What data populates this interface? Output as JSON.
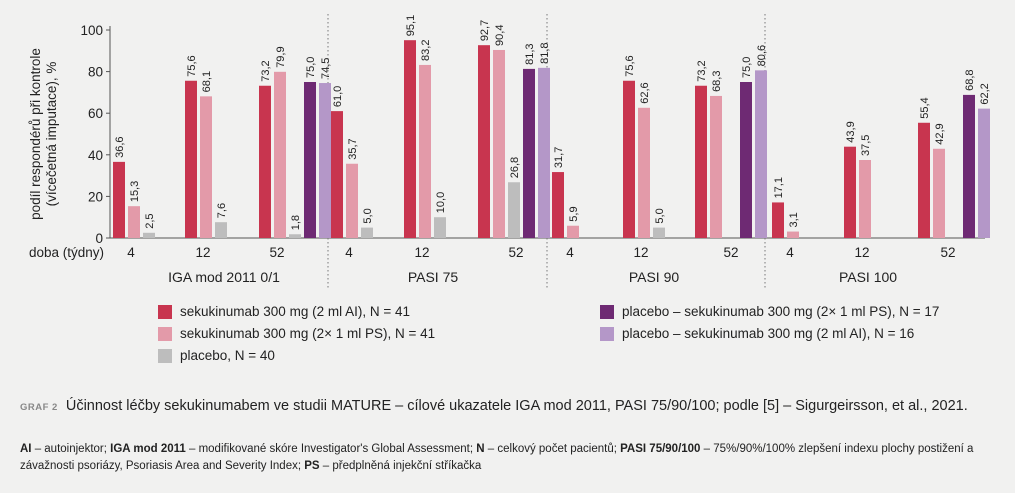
{
  "colors": {
    "sekukinumab_ai": "#c8354f",
    "sekukinumab_ps": "#e39aa9",
    "placebo": "#bdbdbd",
    "placebo_ps": "#6e2a73",
    "placebo_ai": "#b497c8"
  },
  "chart_data": {
    "type": "bar",
    "ylabel": "podíl respondérů při kontrole (vícečetná imputace), %",
    "xlabel": "doba (týdny)",
    "ylim": [
      0,
      100
    ],
    "yticks": [
      0,
      20,
      40,
      60,
      80,
      100
    ],
    "grid": false,
    "legend_position": "bottom",
    "series": [
      {
        "name": "sekukinumab 300 mg (2 ml AI), N = 41",
        "color_key": "sekukinumab_ai"
      },
      {
        "name": "sekukinumab 300 mg (2× 1 ml PS), N = 41",
        "color_key": "sekukinumab_ps"
      },
      {
        "name": "placebo, N = 40",
        "color_key": "placebo"
      },
      {
        "name": "placebo – sekukinumab 300 mg (2× 1 ml PS), N = 17",
        "color_key": "placebo_ps"
      },
      {
        "name": "placebo – sekukinumab 300 mg (2 ml AI), N = 16",
        "color_key": "placebo_ai"
      }
    ],
    "panels": [
      {
        "name": "IGA mod 2011 0/1",
        "timepoints": [
          {
            "week": "4",
            "values": [
              36.6,
              15.3,
              2.5,
              null,
              null
            ],
            "labels": [
              "36,6",
              "15,3",
              "2,5",
              "",
              ""
            ]
          },
          {
            "week": "12",
            "values": [
              75.6,
              68.1,
              7.6,
              null,
              null
            ],
            "labels": [
              "75,6",
              "68,1",
              "7,6",
              "",
              ""
            ]
          },
          {
            "week": "52",
            "values": [
              73.2,
              79.9,
              1.8,
              75.0,
              74.5
            ],
            "labels": [
              "73,2",
              "79,9",
              "1,8",
              "75,0",
              "74,5"
            ]
          }
        ]
      },
      {
        "name": "PASI 75",
        "timepoints": [
          {
            "week": "4",
            "values": [
              61.0,
              35.7,
              5.0,
              null,
              null
            ],
            "labels": [
              "61,0",
              "35,7",
              "5,0",
              "",
              ""
            ]
          },
          {
            "week": "12",
            "values": [
              95.1,
              83.2,
              10.0,
              null,
              null
            ],
            "labels": [
              "95,1",
              "83,2",
              "10,0",
              "",
              ""
            ]
          },
          {
            "week": "52",
            "values": [
              92.7,
              90.4,
              26.8,
              81.3,
              81.8
            ],
            "labels": [
              "92,7",
              "90,4",
              "26,8",
              "81,3",
              "81,8"
            ]
          }
        ]
      },
      {
        "name": "PASI 90",
        "timepoints": [
          {
            "week": "4",
            "values": [
              31.7,
              5.9,
              null,
              null,
              null
            ],
            "labels": [
              "31,7",
              "5,9",
              "",
              "",
              ""
            ]
          },
          {
            "week": "12",
            "values": [
              75.6,
              62.6,
              5.0,
              null,
              null
            ],
            "labels": [
              "75,6",
              "62,6",
              "5,0",
              "",
              ""
            ]
          },
          {
            "week": "52",
            "values": [
              73.2,
              68.3,
              null,
              75.0,
              80.6
            ],
            "labels": [
              "73,2",
              "68,3",
              "",
              "75,0",
              "80,6"
            ]
          }
        ]
      },
      {
        "name": "PASI 100",
        "timepoints": [
          {
            "week": "4",
            "values": [
              17.1,
              3.1,
              null,
              null,
              null
            ],
            "labels": [
              "17,1",
              "3,1",
              "",
              "",
              ""
            ]
          },
          {
            "week": "12",
            "values": [
              43.9,
              37.5,
              null,
              null,
              null
            ],
            "labels": [
              "43,9",
              "37,5",
              "",
              "",
              ""
            ]
          },
          {
            "week": "52",
            "values": [
              55.4,
              42.9,
              null,
              68.8,
              62.2
            ],
            "labels": [
              "55,4",
              "42,9",
              "",
              "68,8",
              "62,2"
            ]
          }
        ]
      }
    ]
  },
  "caption": {
    "label": "GRAF 2",
    "text": "Účinnost léčby sekukinumabem ve studii MATURE – cílové ukazatele IGA mod 2011, PASI 75/90/100; podle [5] – Sigurgeirsson, et al., 2021."
  },
  "footnote": {
    "ai_term": "AI",
    "ai_def": " – autoinjektor; ",
    "iga_term": "IGA mod 2011",
    "iga_def": " – modifikované skóre Investigator's Global Assessment; ",
    "n_term": "N",
    "n_def": " – celkový počet pacientů; ",
    "pasi_term": "PASI 75/90/100",
    "pasi_def": " – 75%/90%/100% zlepšení indexu plochy postižení a závažnosti psoriázy, Psoriasis Area and Severity Index; ",
    "ps_term": "PS",
    "ps_def": " – předplněná injekční stříkačka"
  }
}
